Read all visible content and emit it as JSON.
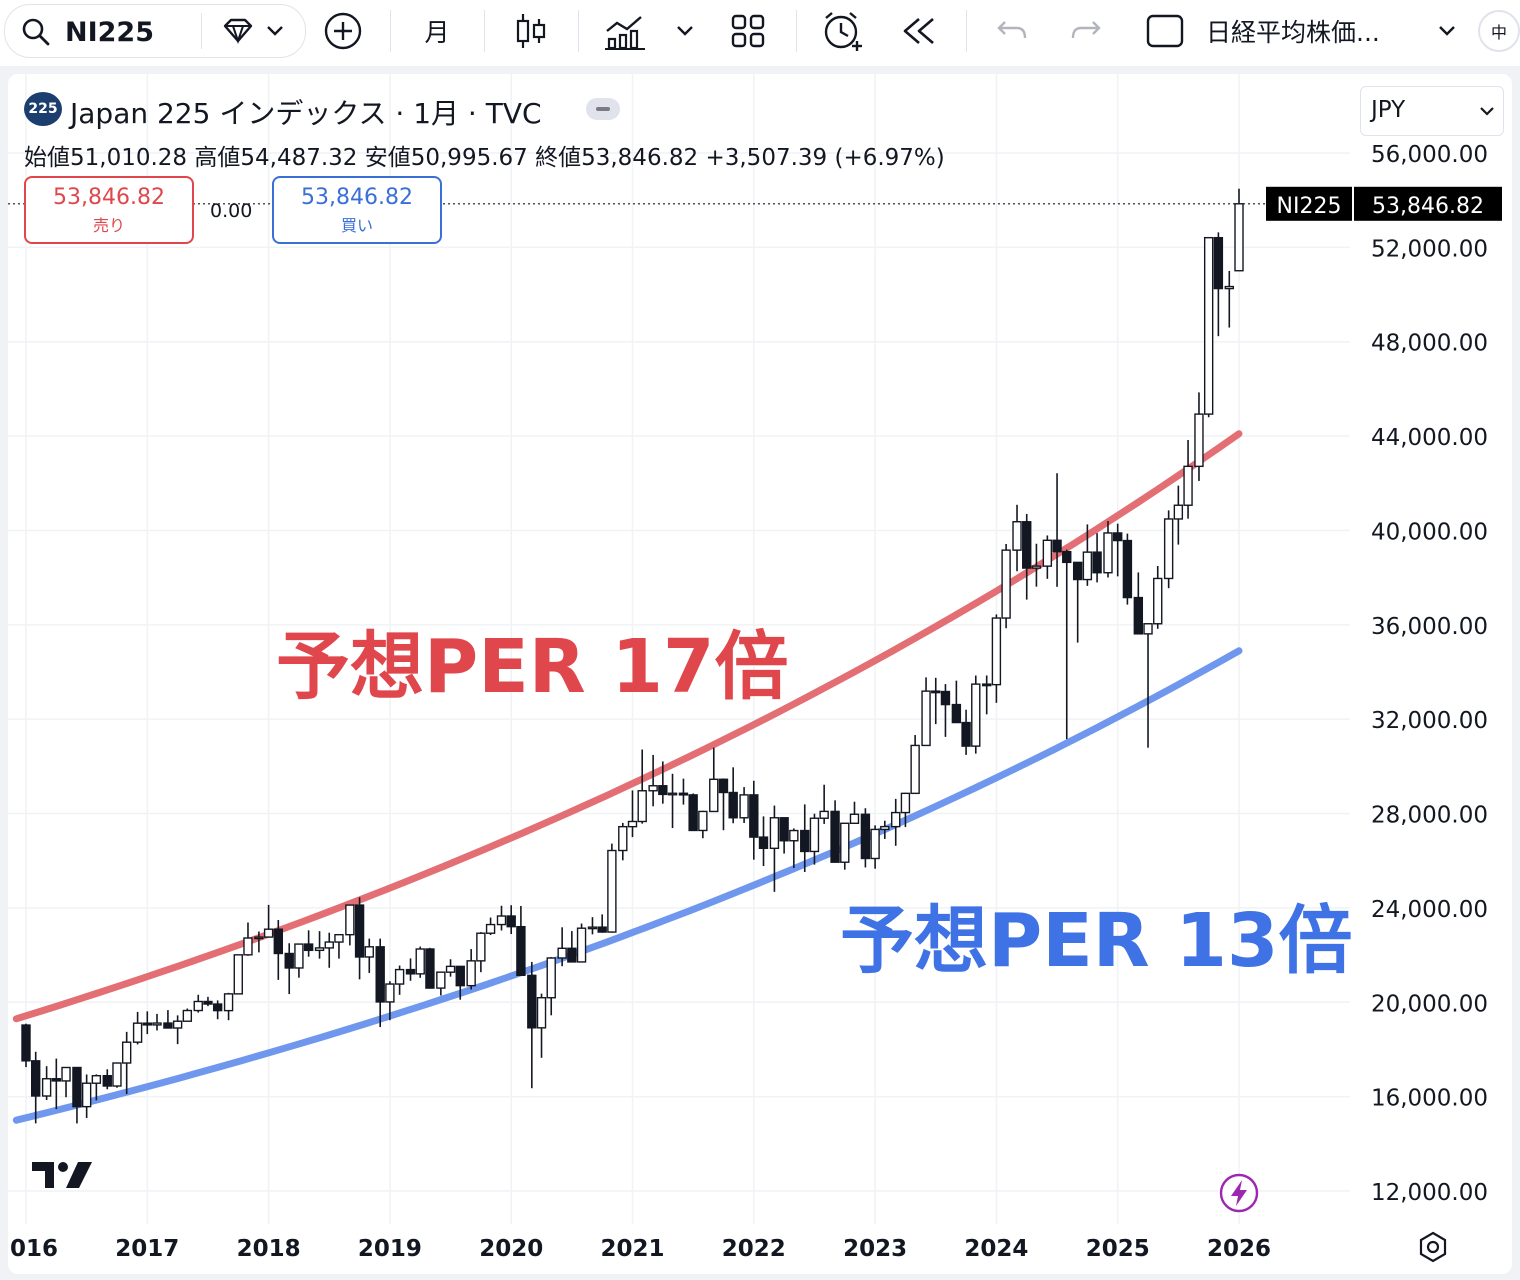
{
  "toolbar": {
    "symbol": "NI225",
    "interval": "月",
    "compare_label": "日経平均株価...",
    "lang_badge": "中"
  },
  "legend": {
    "title": "Japan 225 インデックス · 1月 · TVC",
    "symbol_badge": "225",
    "ohlc": "始値51,010.28 高値54,487.32 安値50,995.67 終値53,846.82 +3,507.39 (+6.97%)"
  },
  "trade": {
    "sell_price": "53,846.82",
    "sell_label": "売り",
    "buy_price": "53,846.82",
    "buy_label": "買い",
    "spread": "0.00"
  },
  "currency": "JPY",
  "colors": {
    "per17": "#e36f74",
    "per13": "#6f97ee",
    "annot17": "#e0474c",
    "annot13": "#3f72e4",
    "sell": "#e0474c",
    "buy": "#3b6fd8",
    "grid": "#f0f2f5",
    "candle": "#131722"
  },
  "chart_data": {
    "type": "candlestick",
    "title": "Japan 225 インデックス · 1月 · TVC",
    "y_ticks": [
      "56,000.00",
      "52,000.00",
      "48,000.00",
      "44,000.00",
      "40,000.00",
      "36,000.00",
      "32,000.00",
      "28,000.00",
      "24,000.00",
      "20,000.00",
      "16,000.00",
      "12,000.00"
    ],
    "x_ticks": [
      "016",
      "2017",
      "2018",
      "2019",
      "2020",
      "2021",
      "2022",
      "2023",
      "2024",
      "2025",
      "2026"
    ],
    "ylim": [
      11500,
      58000
    ],
    "last_price": {
      "symbol": "NI225",
      "value": 53846.82,
      "label": "53,846.82"
    },
    "annotations": [
      {
        "text": "予想PER 17倍",
        "series": "per17"
      },
      {
        "text": "予想PER 13倍",
        "series": "per13"
      }
    ],
    "series": [
      {
        "id": "per17",
        "type": "line",
        "x_start": 2015.92,
        "x_end": 2026.0,
        "values": [
          19300,
          44100
        ]
      },
      {
        "id": "per13",
        "type": "line",
        "x_start": 2015.92,
        "x_end": 2026.0,
        "values": [
          15000,
          34900
        ]
      }
    ],
    "candles": [
      {
        "x": 2016.0,
        "o": 19034,
        "h": 19092,
        "l": 17250,
        "c": 17518
      },
      {
        "x": 2016.08,
        "o": 17518,
        "h": 17905,
        "l": 14865,
        "c": 16027
      },
      {
        "x": 2016.17,
        "o": 16027,
        "h": 17291,
        "l": 15857,
        "c": 16759
      },
      {
        "x": 2016.25,
        "o": 16759,
        "h": 17613,
        "l": 15471,
        "c": 16666
      },
      {
        "x": 2016.33,
        "o": 16666,
        "h": 17251,
        "l": 15975,
        "c": 17235
      },
      {
        "x": 2016.42,
        "o": 17235,
        "h": 17235,
        "l": 14864,
        "c": 15576
      },
      {
        "x": 2016.5,
        "o": 15576,
        "h": 16938,
        "l": 15095,
        "c": 16569
      },
      {
        "x": 2016.58,
        "o": 16569,
        "h": 16943,
        "l": 15842,
        "c": 16887
      },
      {
        "x": 2016.67,
        "o": 16887,
        "h": 17160,
        "l": 16311,
        "c": 16450
      },
      {
        "x": 2016.75,
        "o": 16450,
        "h": 17450,
        "l": 16377,
        "c": 17425
      },
      {
        "x": 2016.83,
        "o": 17425,
        "h": 18746,
        "l": 16111,
        "c": 18308
      },
      {
        "x": 2016.92,
        "o": 18308,
        "h": 19592,
        "l": 18212,
        "c": 19114
      },
      {
        "x": 2017.0,
        "o": 19114,
        "h": 19615,
        "l": 18650,
        "c": 19041
      },
      {
        "x": 2017.08,
        "o": 19041,
        "h": 19507,
        "l": 18805,
        "c": 19119
      },
      {
        "x": 2017.17,
        "o": 19119,
        "h": 19668,
        "l": 18909,
        "c": 18909
      },
      {
        "x": 2017.25,
        "o": 18909,
        "h": 19445,
        "l": 18224,
        "c": 19197
      },
      {
        "x": 2017.33,
        "o": 19197,
        "h": 19736,
        "l": 19197,
        "c": 19650
      },
      {
        "x": 2017.42,
        "o": 19650,
        "h": 20318,
        "l": 19562,
        "c": 20033
      },
      {
        "x": 2017.5,
        "o": 20033,
        "h": 20230,
        "l": 19835,
        "c": 19925
      },
      {
        "x": 2017.58,
        "o": 19925,
        "h": 20080,
        "l": 19280,
        "c": 19646
      },
      {
        "x": 2017.67,
        "o": 19646,
        "h": 20400,
        "l": 19239,
        "c": 20356
      },
      {
        "x": 2017.75,
        "o": 20356,
        "h": 22012,
        "l": 20356,
        "c": 22011
      },
      {
        "x": 2017.83,
        "o": 22011,
        "h": 23382,
        "l": 21970,
        "c": 22724
      },
      {
        "x": 2017.92,
        "o": 22724,
        "h": 23000,
        "l": 22115,
        "c": 22764
      },
      {
        "x": 2018.0,
        "o": 22764,
        "h": 24129,
        "l": 22764,
        "c": 23098
      },
      {
        "x": 2018.08,
        "o": 23098,
        "h": 23486,
        "l": 20950,
        "c": 22068
      },
      {
        "x": 2018.17,
        "o": 22068,
        "h": 22502,
        "l": 20347,
        "c": 21454
      },
      {
        "x": 2018.25,
        "o": 21454,
        "h": 22467,
        "l": 21042,
        "c": 22467
      },
      {
        "x": 2018.33,
        "o": 22467,
        "h": 23050,
        "l": 21931,
        "c": 22201
      },
      {
        "x": 2018.42,
        "o": 22201,
        "h": 23015,
        "l": 21849,
        "c": 22304
      },
      {
        "x": 2018.5,
        "o": 22304,
        "h": 22949,
        "l": 21462,
        "c": 22553
      },
      {
        "x": 2018.58,
        "o": 22553,
        "h": 22869,
        "l": 21851,
        "c": 22865
      },
      {
        "x": 2018.67,
        "o": 22865,
        "h": 24120,
        "l": 22411,
        "c": 24120
      },
      {
        "x": 2018.75,
        "o": 24120,
        "h": 24448,
        "l": 20971,
        "c": 21920
      },
      {
        "x": 2018.83,
        "o": 21920,
        "h": 22698,
        "l": 21243,
        "c": 22351
      },
      {
        "x": 2018.92,
        "o": 22351,
        "h": 22698,
        "l": 18948,
        "c": 20015
      },
      {
        "x": 2019.0,
        "o": 20015,
        "h": 20892,
        "l": 19241,
        "c": 20773
      },
      {
        "x": 2019.08,
        "o": 20773,
        "h": 21556,
        "l": 20315,
        "c": 21385
      },
      {
        "x": 2019.17,
        "o": 21385,
        "h": 21860,
        "l": 20911,
        "c": 21205
      },
      {
        "x": 2019.25,
        "o": 21205,
        "h": 22362,
        "l": 21038,
        "c": 22258
      },
      {
        "x": 2019.33,
        "o": 22258,
        "h": 22307,
        "l": 20601,
        "c": 20601
      },
      {
        "x": 2019.42,
        "o": 20601,
        "h": 21259,
        "l": 20289,
        "c": 21276
      },
      {
        "x": 2019.5,
        "o": 21276,
        "h": 21823,
        "l": 21086,
        "c": 21522
      },
      {
        "x": 2019.58,
        "o": 21522,
        "h": 21522,
        "l": 20110,
        "c": 20704
      },
      {
        "x": 2019.67,
        "o": 20704,
        "h": 22255,
        "l": 20541,
        "c": 21756
      },
      {
        "x": 2019.75,
        "o": 21756,
        "h": 22974,
        "l": 21276,
        "c": 22927
      },
      {
        "x": 2019.83,
        "o": 22927,
        "h": 23591,
        "l": 22850,
        "c": 23294
      },
      {
        "x": 2019.92,
        "o": 23294,
        "h": 24091,
        "l": 23044,
        "c": 23656
      },
      {
        "x": 2020.0,
        "o": 23656,
        "h": 24115,
        "l": 22892,
        "c": 23205
      },
      {
        "x": 2020.08,
        "o": 23205,
        "h": 24083,
        "l": 21143,
        "c": 21142
      },
      {
        "x": 2020.17,
        "o": 21142,
        "h": 21709,
        "l": 16358,
        "c": 18917
      },
      {
        "x": 2020.25,
        "o": 18917,
        "h": 20365,
        "l": 17646,
        "c": 20193
      },
      {
        "x": 2020.33,
        "o": 20193,
        "h": 21916,
        "l": 19448,
        "c": 21877
      },
      {
        "x": 2020.42,
        "o": 21877,
        "h": 23178,
        "l": 21529,
        "c": 22288
      },
      {
        "x": 2020.5,
        "o": 22288,
        "h": 23018,
        "l": 21710,
        "c": 21710
      },
      {
        "x": 2020.58,
        "o": 21710,
        "h": 23338,
        "l": 21710,
        "c": 23140
      },
      {
        "x": 2020.67,
        "o": 23140,
        "h": 23608,
        "l": 22878,
        "c": 23185
      },
      {
        "x": 2020.75,
        "o": 23185,
        "h": 23725,
        "l": 22948,
        "c": 22977
      },
      {
        "x": 2020.83,
        "o": 22977,
        "h": 26725,
        "l": 22948,
        "c": 26433
      },
      {
        "x": 2020.92,
        "o": 26433,
        "h": 27602,
        "l": 26017,
        "c": 27444
      },
      {
        "x": 2021.0,
        "o": 27444,
        "h": 28979,
        "l": 27002,
        "c": 27663
      },
      {
        "x": 2021.08,
        "o": 27663,
        "h": 30714,
        "l": 27573,
        "c": 28966
      },
      {
        "x": 2021.17,
        "o": 28966,
        "h": 30485,
        "l": 28308,
        "c": 29178
      },
      {
        "x": 2021.25,
        "o": 29178,
        "h": 30208,
        "l": 28419,
        "c": 28812
      },
      {
        "x": 2021.33,
        "o": 28812,
        "h": 29685,
        "l": 27385,
        "c": 28860
      },
      {
        "x": 2021.42,
        "o": 28860,
        "h": 29480,
        "l": 28379,
        "c": 28791
      },
      {
        "x": 2021.5,
        "o": 28791,
        "h": 28852,
        "l": 27272,
        "c": 27283
      },
      {
        "x": 2021.58,
        "o": 27283,
        "h": 28116,
        "l": 26954,
        "c": 28089
      },
      {
        "x": 2021.67,
        "o": 28089,
        "h": 30795,
        "l": 28089,
        "c": 29452
      },
      {
        "x": 2021.75,
        "o": 29452,
        "h": 29489,
        "l": 27293,
        "c": 28892
      },
      {
        "x": 2021.83,
        "o": 28892,
        "h": 29960,
        "l": 27588,
        "c": 27821
      },
      {
        "x": 2021.92,
        "o": 27821,
        "h": 29121,
        "l": 27601,
        "c": 28791
      },
      {
        "x": 2022.0,
        "o": 28791,
        "h": 29388,
        "l": 26044,
        "c": 27001
      },
      {
        "x": 2022.08,
        "o": 27001,
        "h": 27880,
        "l": 25775,
        "c": 26526
      },
      {
        "x": 2022.17,
        "o": 26526,
        "h": 28338,
        "l": 24681,
        "c": 27821
      },
      {
        "x": 2022.25,
        "o": 27821,
        "h": 27833,
        "l": 26304,
        "c": 26847
      },
      {
        "x": 2022.33,
        "o": 26847,
        "h": 27369,
        "l": 25688,
        "c": 27279
      },
      {
        "x": 2022.42,
        "o": 27279,
        "h": 28389,
        "l": 25520,
        "c": 26393
      },
      {
        "x": 2022.5,
        "o": 26393,
        "h": 27994,
        "l": 25835,
        "c": 27801
      },
      {
        "x": 2022.58,
        "o": 27801,
        "h": 29222,
        "l": 27561,
        "c": 28091
      },
      {
        "x": 2022.67,
        "o": 28091,
        "h": 28561,
        "l": 25935,
        "c": 25937
      },
      {
        "x": 2022.75,
        "o": 25937,
        "h": 27587,
        "l": 25621,
        "c": 27587
      },
      {
        "x": 2022.83,
        "o": 27587,
        "h": 28502,
        "l": 27570,
        "c": 27969
      },
      {
        "x": 2022.92,
        "o": 27969,
        "h": 28226,
        "l": 25716,
        "c": 26095
      },
      {
        "x": 2023.0,
        "o": 26095,
        "h": 27500,
        "l": 25661,
        "c": 27327
      },
      {
        "x": 2023.08,
        "o": 27327,
        "h": 27696,
        "l": 26924,
        "c": 27446
      },
      {
        "x": 2023.17,
        "o": 27446,
        "h": 28623,
        "l": 26632,
        "c": 28041
      },
      {
        "x": 2023.25,
        "o": 28041,
        "h": 28879,
        "l": 27427,
        "c": 28856
      },
      {
        "x": 2023.33,
        "o": 28856,
        "h": 31328,
        "l": 28856,
        "c": 30887
      },
      {
        "x": 2023.42,
        "o": 30887,
        "h": 33772,
        "l": 30887,
        "c": 33189
      },
      {
        "x": 2023.5,
        "o": 33189,
        "h": 33753,
        "l": 31791,
        "c": 33172
      },
      {
        "x": 2023.58,
        "o": 33172,
        "h": 33488,
        "l": 31250,
        "c": 32619
      },
      {
        "x": 2023.67,
        "o": 32619,
        "h": 33634,
        "l": 31857,
        "c": 31857
      },
      {
        "x": 2023.75,
        "o": 31857,
        "h": 32401,
        "l": 30487,
        "c": 30858
      },
      {
        "x": 2023.83,
        "o": 30858,
        "h": 33853,
        "l": 30538,
        "c": 33486
      },
      {
        "x": 2023.92,
        "o": 33486,
        "h": 33853,
        "l": 32205,
        "c": 33464
      },
      {
        "x": 2024.0,
        "o": 33464,
        "h": 36441,
        "l": 32693,
        "c": 36287
      },
      {
        "x": 2024.08,
        "o": 36287,
        "h": 39426,
        "l": 35855,
        "c": 39166
      },
      {
        "x": 2024.17,
        "o": 39166,
        "h": 41087,
        "l": 38271,
        "c": 40369
      },
      {
        "x": 2024.25,
        "o": 40369,
        "h": 40697,
        "l": 37068,
        "c": 38405
      },
      {
        "x": 2024.33,
        "o": 38405,
        "h": 39437,
        "l": 37617,
        "c": 38487
      },
      {
        "x": 2024.42,
        "o": 38487,
        "h": 39788,
        "l": 37950,
        "c": 39583
      },
      {
        "x": 2024.5,
        "o": 39583,
        "h": 42426,
        "l": 37611,
        "c": 39101
      },
      {
        "x": 2024.58,
        "o": 39101,
        "h": 39188,
        "l": 31156,
        "c": 38647
      },
      {
        "x": 2024.67,
        "o": 38647,
        "h": 38647,
        "l": 35247,
        "c": 37919
      },
      {
        "x": 2024.75,
        "o": 37919,
        "h": 40257,
        "l": 37651,
        "c": 39081
      },
      {
        "x": 2024.83,
        "o": 39081,
        "h": 39884,
        "l": 37798,
        "c": 38208
      },
      {
        "x": 2024.92,
        "o": 38208,
        "h": 40398,
        "l": 38007,
        "c": 39894
      },
      {
        "x": 2025.0,
        "o": 39894,
        "h": 40288,
        "l": 38055,
        "c": 39572
      },
      {
        "x": 2025.08,
        "o": 39572,
        "h": 39866,
        "l": 36857,
        "c": 37155
      },
      {
        "x": 2025.17,
        "o": 37155,
        "h": 38220,
        "l": 35617,
        "c": 35617
      },
      {
        "x": 2025.25,
        "o": 35617,
        "h": 36034,
        "l": 30792,
        "c": 36045
      },
      {
        "x": 2025.33,
        "o": 36045,
        "h": 38494,
        "l": 35830,
        "c": 37965
      },
      {
        "x": 2025.42,
        "o": 37965,
        "h": 40852,
        "l": 37553,
        "c": 40487
      },
      {
        "x": 2025.5,
        "o": 40487,
        "h": 41900,
        "l": 39400,
        "c": 41069
      },
      {
        "x": 2025.58,
        "o": 41069,
        "h": 43835,
        "l": 40500,
        "c": 42718
      },
      {
        "x": 2025.67,
        "o": 42718,
        "h": 45852,
        "l": 42100,
        "c": 44932
      },
      {
        "x": 2025.75,
        "o": 44932,
        "h": 52411,
        "l": 44800,
        "c": 52411
      },
      {
        "x": 2025.83,
        "o": 52411,
        "h": 52636,
        "l": 48235,
        "c": 50253
      },
      {
        "x": 2025.92,
        "o": 50253,
        "h": 51000,
        "l": 48600,
        "c": 50339
      },
      {
        "x": 2026.0,
        "o": 51010,
        "h": 54487,
        "l": 50996,
        "c": 53847
      }
    ]
  }
}
